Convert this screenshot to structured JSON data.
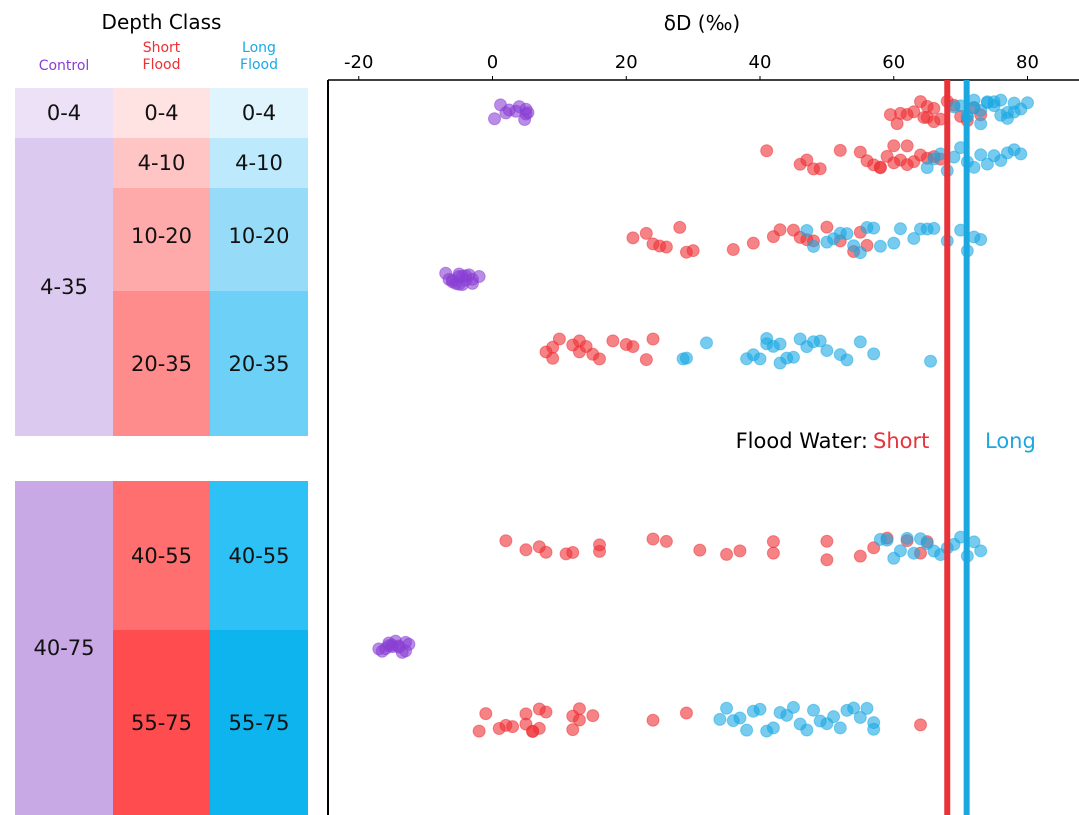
{
  "chart_data": {
    "type": "strip",
    "title": "Depth Class",
    "xlabel": "δD (‰)",
    "xlim": [
      -24.6,
      87.7
    ],
    "xticks": [
      -20,
      0,
      20,
      40,
      60,
      80
    ],
    "series": [
      {
        "name": "Control",
        "color": "#8a3fd4",
        "groups": [
          {
            "depth": "0-4",
            "values": [
              0.3,
              1.2,
              2,
              2.5,
              3.5,
              5,
              4,
              5,
              5.3,
              4.8
            ]
          },
          {
            "depth": "4-35",
            "values": [
              -7,
              -6.5,
              -6,
              -5.5,
              -5,
              -5,
              -4.5,
              -4,
              -3.5,
              -3,
              -2,
              -6,
              -4,
              -5,
              -4.5,
              -3
            ]
          },
          {
            "depth": "40-75",
            "values": [
              -17,
              -16.5,
              -16,
              -15.5,
              -15,
              -15,
              -14.5,
              -14,
              -13.5,
              -13,
              -12.5,
              -14,
              -15.5,
              -13
            ]
          }
        ]
      },
      {
        "name": "Short Flood",
        "color": "#ee2f33",
        "groups": [
          {
            "depth": "0-4",
            "values": [
              59.5,
              60.5,
              61,
              62,
              63,
              64,
              64.5,
              65,
              66,
              67,
              68,
              69,
              70,
              71,
              72,
              66,
              65,
              73
            ]
          },
          {
            "depth": "4-10",
            "values": [
              41,
              46,
              47,
              48,
              49,
              52,
              55,
              56,
              57,
              58,
              59,
              60,
              61,
              62,
              63,
              64,
              65,
              66,
              67,
              62,
              58,
              60
            ]
          },
          {
            "depth": "10-20",
            "values": [
              21,
              23,
              24,
              25,
              26,
              28,
              29,
              30,
              36,
              39,
              42,
              43,
              45,
              46,
              47,
              48,
              50,
              52,
              54,
              55,
              56
            ]
          },
          {
            "depth": "20-35",
            "values": [
              8,
              9,
              10,
              12,
              13,
              14,
              15,
              16,
              18,
              20,
              21,
              23,
              24,
              13,
              9
            ]
          },
          {
            "depth": "40-55",
            "values": [
              2,
              5,
              7,
              8,
              11,
              12,
              16,
              16,
              24,
              26,
              31,
              35,
              37,
              42,
              42,
              50,
              50,
              55,
              57,
              59,
              62,
              64,
              65
            ]
          },
          {
            "depth": "55-75",
            "values": [
              -2,
              -1,
              1,
              2,
              3,
              5,
              5,
              6,
              6,
              7,
              7,
              8,
              12,
              12,
              13,
              13,
              15,
              24,
              29,
              64
            ]
          }
        ]
      },
      {
        "name": "Long Flood",
        "color": "#1aa9e3",
        "groups": [
          {
            "depth": "0-4",
            "values": [
              69,
              70,
              71,
              72,
              73,
              74,
              75,
              76,
              77,
              78,
              79,
              80,
              71,
              73,
              75,
              77,
              72,
              74,
              76,
              78
            ]
          },
          {
            "depth": "4-10",
            "values": [
              65,
              66,
              68,
              69,
              70,
              71,
              72,
              73,
              74,
              75,
              76,
              77,
              78,
              79,
              67
            ]
          },
          {
            "depth": "10-20",
            "values": [
              47,
              48,
              50,
              51,
              52,
              53,
              54,
              55,
              56,
              57,
              58,
              60,
              61,
              63,
              64,
              65,
              66,
              68,
              70,
              71,
              72,
              73
            ]
          },
          {
            "depth": "20-35",
            "values": [
              28.5,
              29,
              32,
              38,
              39,
              40,
              41,
              42,
              43,
              44,
              45,
              46,
              47,
              48,
              49,
              50,
              52,
              53,
              55,
              57,
              65.5,
              43,
              41
            ]
          },
          {
            "depth": "40-55",
            "values": [
              58,
              59,
              60,
              61,
              62,
              63,
              64,
              65,
              66,
              67,
              68,
              69,
              70,
              71,
              72,
              73
            ]
          },
          {
            "depth": "55-75",
            "values": [
              34,
              35,
              36,
              37,
              38,
              39,
              40,
              41,
              42,
              43,
              44,
              45,
              46,
              47,
              48,
              49,
              50,
              51,
              52,
              53,
              54,
              55,
              56,
              57,
              57
            ]
          }
        ]
      }
    ],
    "reference_lines": [
      {
        "name": "Short",
        "value": 68,
        "color": "#e8333a"
      },
      {
        "name": "Long",
        "value": 70.9,
        "color": "#1ba8e0"
      }
    ],
    "annotation": "Flood Water:"
  }
}
